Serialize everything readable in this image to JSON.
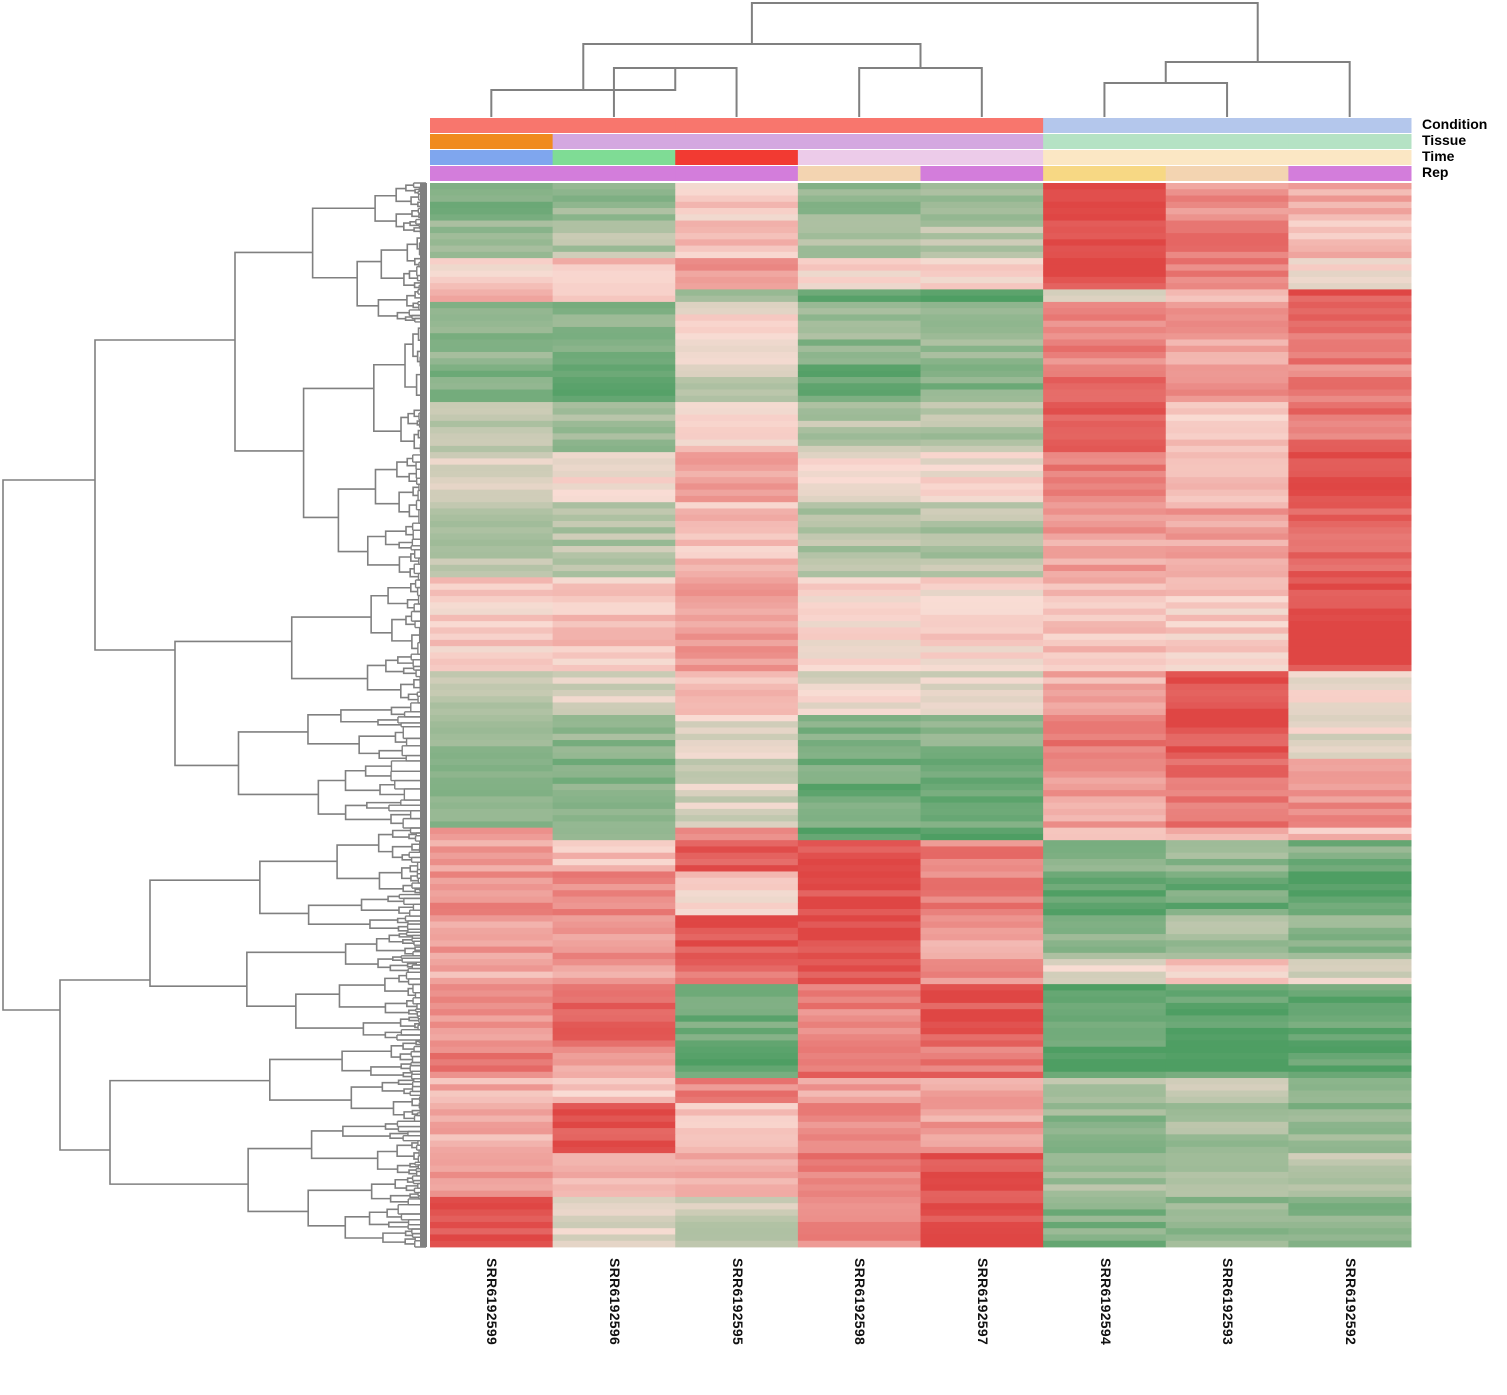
{
  "chart_data": {
    "type": "heatmap",
    "title": "",
    "xlabel": "",
    "ylabel": "",
    "samples": [
      "SRR6192599",
      "SRR6192596",
      "SRR6192595",
      "SRR6192598",
      "SRR6192597",
      "SRR6192594",
      "SRR6192593",
      "SRR6192592"
    ],
    "annotation_tracks": [
      {
        "name": "Condition",
        "colors": [
          "#f8766d",
          "#f8766d",
          "#f8766d",
          "#f8766d",
          "#f8766d",
          "#b4c7ec",
          "#b4c7ec",
          "#b4c7ec"
        ]
      },
      {
        "name": "Tissue",
        "colors": [
          "#f08a1e",
          "#d4a8e0",
          "#d4a8e0",
          "#d4a8e0",
          "#d4a8e0",
          "#b5e2c4",
          "#b5e2c4",
          "#b5e2c4"
        ]
      },
      {
        "name": "Time",
        "colors": [
          "#7fa6ee",
          "#7fdc95",
          "#f23a32",
          "#eccbe9",
          "#eccbe9",
          "#fbe7c4",
          "#fbe7c4",
          "#fbe7c4"
        ]
      },
      {
        "name": "Rep",
        "colors": [
          "#d37ddb",
          "#d37ddb",
          "#d37ddb",
          "#f3d4b1",
          "#d37ddb",
          "#f7d884",
          "#f3d4b1",
          "#d37ddb"
        ]
      }
    ],
    "color_scale": {
      "low": "#4e9e63",
      "mid": "#f9dcd4",
      "high": "#df4644"
    },
    "row_blocks": [
      {
        "rows": 6,
        "values": [
          -0.7,
          -0.6,
          0.1,
          -0.6,
          -0.5,
          1.0,
          0.5,
          0.3
        ]
      },
      {
        "rows": 6,
        "values": [
          -0.5,
          -0.4,
          0.2,
          -0.5,
          -0.4,
          0.95,
          0.7,
          0.2
        ]
      },
      {
        "rows": 5,
        "values": [
          0.1,
          0.2,
          0.5,
          0.1,
          0.1,
          0.95,
          0.6,
          0.0
        ]
      },
      {
        "rows": 2,
        "values": [
          0.3,
          0.1,
          -0.4,
          -0.9,
          -0.9,
          -0.3,
          0.3,
          0.9
        ]
      },
      {
        "rows": 10,
        "values": [
          -0.6,
          -0.7,
          0.0,
          -0.6,
          -0.6,
          0.6,
          0.4,
          0.7
        ]
      },
      {
        "rows": 6,
        "values": [
          -0.7,
          -0.9,
          -0.3,
          -0.8,
          -0.7,
          0.7,
          0.5,
          0.6
        ]
      },
      {
        "rows": 8,
        "values": [
          -0.3,
          -0.5,
          0.1,
          -0.4,
          -0.4,
          0.8,
          0.1,
          0.7
        ]
      },
      {
        "rows": 8,
        "values": [
          -0.1,
          0.0,
          0.4,
          0.0,
          0.0,
          0.6,
          0.3,
          0.9
        ]
      },
      {
        "rows": 12,
        "values": [
          -0.4,
          -0.4,
          0.2,
          -0.4,
          -0.4,
          0.4,
          0.4,
          0.8
        ]
      },
      {
        "rows": 15,
        "values": [
          0.1,
          0.15,
          0.45,
          0.05,
          0.05,
          0.2,
          0.1,
          0.95
        ]
      },
      {
        "rows": 7,
        "values": [
          -0.3,
          -0.2,
          0.2,
          -0.1,
          -0.2,
          0.3,
          0.95,
          0.0
        ]
      },
      {
        "rows": 7,
        "values": [
          -0.6,
          -0.6,
          -0.1,
          -0.7,
          -0.7,
          0.7,
          0.9,
          -0.1
        ]
      },
      {
        "rows": 11,
        "values": [
          -0.7,
          -0.7,
          -0.2,
          -0.8,
          -0.8,
          0.4,
          0.7,
          0.5
        ]
      },
      {
        "rows": 2,
        "values": [
          0.6,
          -0.6,
          0.4,
          -0.9,
          -0.9,
          0.0,
          0.3,
          0.2
        ]
      },
      {
        "rows": 5,
        "values": [
          0.4,
          0.2,
          0.9,
          0.9,
          0.6,
          -0.7,
          -0.6,
          -0.7
        ]
      },
      {
        "rows": 7,
        "values": [
          0.5,
          0.6,
          0.1,
          0.95,
          0.6,
          -0.9,
          -0.8,
          -0.9
        ]
      },
      {
        "rows": 7,
        "values": [
          0.4,
          0.5,
          0.9,
          0.95,
          0.4,
          -0.6,
          -0.5,
          -0.6
        ]
      },
      {
        "rows": 4,
        "values": [
          0.3,
          0.4,
          0.7,
          0.95,
          0.5,
          -0.1,
          0.1,
          -0.2
        ]
      },
      {
        "rows": 10,
        "values": [
          0.5,
          0.85,
          -0.8,
          0.6,
          0.9,
          -0.9,
          -0.9,
          -0.9
        ]
      },
      {
        "rows": 5,
        "values": [
          0.6,
          0.4,
          -0.9,
          0.7,
          0.7,
          -0.9,
          -0.9,
          -0.9
        ]
      },
      {
        "rows": 4,
        "values": [
          0.3,
          0.1,
          0.6,
          0.4,
          0.4,
          -0.4,
          -0.3,
          -0.5
        ]
      },
      {
        "rows": 8,
        "values": [
          0.3,
          0.95,
          0.2,
          0.6,
          0.4,
          -0.6,
          -0.5,
          -0.6
        ]
      },
      {
        "rows": 7,
        "values": [
          0.4,
          0.3,
          0.3,
          0.6,
          0.95,
          -0.5,
          -0.4,
          -0.4
        ]
      },
      {
        "rows": 8,
        "values": [
          0.95,
          -0.1,
          -0.3,
          0.6,
          0.95,
          -0.7,
          -0.6,
          -0.7
        ]
      }
    ]
  }
}
